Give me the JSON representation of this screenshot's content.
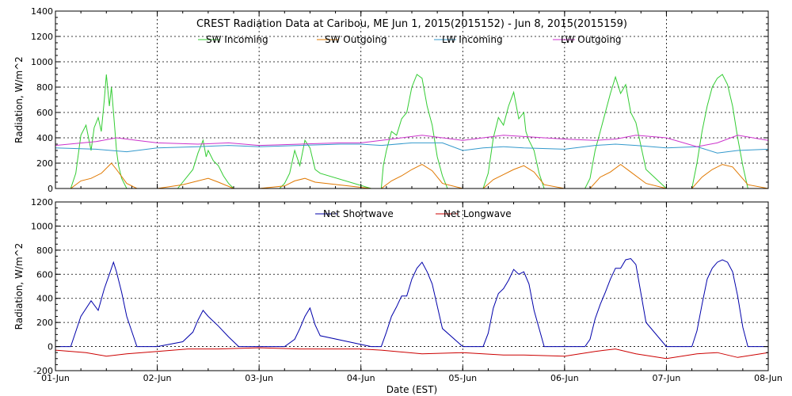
{
  "chart_data": [
    {
      "type": "line",
      "title": "CREST Radiation Data at Caribou, ME   Jun  1, 2015(2015152) - Jun  8, 2015(2015159)",
      "ylabel": "Radiation, W/m^2",
      "xlabel": "",
      "ylim": [
        0,
        1400
      ],
      "yticks": [
        0,
        200,
        400,
        600,
        800,
        1000,
        1200,
        1400
      ],
      "xlim": [
        0,
        7
      ],
      "xtick_labels": [
        "01-Jun",
        "02-Jun",
        "03-Jun",
        "04-Jun",
        "05-Jun",
        "06-Jun",
        "07-Jun",
        "08-Jun"
      ],
      "grid": true,
      "legend_position": "top",
      "series": [
        {
          "name": "SW Incoming",
          "color": "#33cc33",
          "x": [
            0.0,
            0.15,
            0.2,
            0.25,
            0.3,
            0.35,
            0.38,
            0.42,
            0.45,
            0.48,
            0.5,
            0.53,
            0.55,
            0.58,
            0.6,
            0.62,
            0.65,
            0.7,
            0.75,
            0.8,
            1.0,
            1.2,
            1.25,
            1.35,
            1.4,
            1.45,
            1.48,
            1.5,
            1.55,
            1.6,
            1.65,
            1.7,
            1.75,
            1.8,
            2.0,
            2.2,
            2.25,
            2.3,
            2.35,
            2.4,
            2.45,
            2.5,
            2.55,
            2.6,
            3.1,
            3.2,
            3.22,
            3.25,
            3.3,
            3.35,
            3.4,
            3.45,
            3.5,
            3.55,
            3.6,
            3.65,
            3.7,
            3.75,
            3.8,
            3.85,
            4.0,
            4.2,
            4.25,
            4.3,
            4.35,
            4.4,
            4.45,
            4.5,
            4.55,
            4.6,
            4.62,
            4.65,
            4.7,
            4.75,
            4.8,
            5.0,
            5.2,
            5.25,
            5.3,
            5.35,
            5.4,
            5.45,
            5.5,
            5.55,
            5.6,
            5.65,
            5.7,
            5.8,
            6.0,
            6.2,
            6.25,
            6.3,
            6.35,
            6.4,
            6.45,
            6.5,
            6.55,
            6.6,
            6.65,
            6.7,
            6.75,
            6.8,
            7.0
          ],
          "y": [
            0,
            0,
            120,
            420,
            500,
            300,
            480,
            560,
            450,
            700,
            900,
            650,
            800,
            500,
            300,
            180,
            80,
            0,
            0,
            0,
            0,
            0,
            50,
            150,
            280,
            380,
            250,
            300,
            220,
            180,
            100,
            40,
            0,
            0,
            0,
            0,
            40,
            120,
            300,
            180,
            380,
            320,
            150,
            120,
            0,
            0,
            180,
            300,
            450,
            420,
            550,
            600,
            800,
            900,
            870,
            650,
            500,
            250,
            100,
            0,
            0,
            0,
            120,
            400,
            560,
            500,
            650,
            760,
            550,
            600,
            450,
            380,
            300,
            120,
            0,
            0,
            0,
            80,
            300,
            450,
            600,
            750,
            880,
            750,
            820,
            600,
            520,
            150,
            0,
            0,
            0,
            200,
            450,
            650,
            800,
            870,
            900,
            820,
            650,
            400,
            180,
            0,
            0
          ]
        },
        {
          "name": "SW Outgoing",
          "color": "#e07800",
          "x": [
            0.0,
            0.15,
            0.25,
            0.35,
            0.45,
            0.55,
            0.6,
            0.7,
            0.8,
            1.0,
            1.25,
            1.4,
            1.5,
            1.6,
            1.75,
            2.0,
            2.25,
            2.35,
            2.45,
            2.55,
            3.1,
            3.2,
            3.3,
            3.4,
            3.5,
            3.6,
            3.7,
            3.8,
            4.0,
            4.2,
            4.3,
            4.4,
            4.5,
            4.6,
            4.7,
            4.8,
            5.0,
            5.25,
            5.35,
            5.45,
            5.55,
            5.65,
            5.8,
            6.0,
            6.25,
            6.35,
            6.45,
            6.55,
            6.65,
            6.8,
            7.0
          ],
          "y": [
            0,
            0,
            60,
            80,
            120,
            200,
            150,
            40,
            0,
            0,
            30,
            60,
            80,
            50,
            0,
            0,
            20,
            60,
            80,
            50,
            0,
            0,
            60,
            100,
            150,
            190,
            140,
            40,
            0,
            0,
            70,
            110,
            150,
            180,
            130,
            30,
            0,
            0,
            90,
            130,
            190,
            130,
            40,
            0,
            0,
            90,
            150,
            190,
            170,
            30,
            0
          ]
        },
        {
          "name": "LW Incoming",
          "color": "#3399cc",
          "x": [
            0.0,
            0.4,
            0.7,
            1.0,
            1.4,
            1.7,
            2.0,
            2.4,
            2.8,
            3.0,
            3.2,
            3.5,
            3.8,
            4.0,
            4.2,
            4.4,
            4.6,
            5.0,
            5.3,
            5.5,
            5.7,
            6.0,
            6.3,
            6.5,
            6.7,
            7.0
          ],
          "y": [
            320,
            310,
            290,
            320,
            330,
            340,
            330,
            340,
            350,
            350,
            340,
            360,
            360,
            300,
            320,
            330,
            320,
            310,
            340,
            350,
            340,
            320,
            330,
            280,
            300,
            310
          ]
        },
        {
          "name": "LW Outgoing",
          "color": "#cc33cc",
          "x": [
            0.0,
            0.4,
            0.6,
            0.8,
            1.0,
            1.4,
            1.7,
            2.0,
            2.4,
            2.8,
            3.0,
            3.2,
            3.4,
            3.6,
            3.8,
            4.0,
            4.2,
            4.4,
            4.6,
            5.0,
            5.3,
            5.5,
            5.7,
            6.0,
            6.3,
            6.5,
            6.7,
            7.0
          ],
          "y": [
            340,
            370,
            400,
            380,
            360,
            350,
            360,
            340,
            350,
            360,
            360,
            380,
            400,
            420,
            400,
            380,
            400,
            420,
            410,
            390,
            380,
            390,
            420,
            400,
            330,
            360,
            420,
            380
          ]
        }
      ]
    },
    {
      "type": "line",
      "title": "",
      "ylabel": "Radiation, W/m^2",
      "xlabel": "Date (EST)",
      "ylim": [
        -200,
        1200
      ],
      "yticks": [
        -200,
        0,
        200,
        400,
        600,
        800,
        1000,
        1200
      ],
      "xlim": [
        0,
        7
      ],
      "xtick_labels": [
        "01-Jun",
        "02-Jun",
        "03-Jun",
        "04-Jun",
        "05-Jun",
        "06-Jun",
        "07-Jun",
        "08-Jun"
      ],
      "grid": true,
      "legend_position": "top",
      "series": [
        {
          "name": "Net Shortwave",
          "color": "#0000aa",
          "x": [
            0.0,
            0.15,
            0.25,
            0.35,
            0.42,
            0.48,
            0.53,
            0.57,
            0.6,
            0.65,
            0.7,
            0.8,
            1.0,
            1.25,
            1.35,
            1.4,
            1.45,
            1.5,
            1.6,
            1.7,
            1.8,
            2.0,
            2.25,
            2.35,
            2.4,
            2.45,
            2.5,
            2.55,
            2.6,
            3.1,
            3.2,
            3.25,
            3.3,
            3.35,
            3.4,
            3.45,
            3.5,
            3.55,
            3.6,
            3.65,
            3.7,
            3.8,
            4.0,
            4.2,
            4.25,
            4.3,
            4.35,
            4.4,
            4.45,
            4.5,
            4.55,
            4.6,
            4.65,
            4.7,
            4.8,
            5.0,
            5.2,
            5.25,
            5.3,
            5.35,
            5.4,
            5.45,
            5.5,
            5.55,
            5.6,
            5.65,
            5.7,
            5.8,
            6.0,
            6.2,
            6.25,
            6.3,
            6.35,
            6.4,
            6.45,
            6.5,
            6.55,
            6.6,
            6.65,
            6.7,
            6.75,
            6.8,
            7.0
          ],
          "y": [
            0,
            0,
            250,
            380,
            300,
            480,
            600,
            700,
            620,
            450,
            250,
            0,
            0,
            40,
            120,
            220,
            300,
            250,
            170,
            80,
            0,
            0,
            0,
            60,
            150,
            250,
            320,
            180,
            90,
            0,
            0,
            120,
            250,
            330,
            420,
            420,
            560,
            650,
            700,
            620,
            520,
            150,
            0,
            0,
            110,
            320,
            440,
            480,
            550,
            640,
            600,
            620,
            520,
            300,
            0,
            0,
            0,
            60,
            230,
            350,
            450,
            560,
            650,
            650,
            720,
            730,
            680,
            200,
            0,
            0,
            0,
            130,
            350,
            560,
            650,
            700,
            720,
            700,
            620,
            420,
            160,
            0,
            0
          ]
        },
        {
          "name": "Net Longwave",
          "color": "#cc0000",
          "x": [
            0.0,
            0.3,
            0.5,
            0.7,
            1.0,
            1.3,
            1.6,
            2.0,
            2.4,
            2.8,
            3.0,
            3.2,
            3.6,
            4.0,
            4.2,
            4.4,
            4.6,
            5.0,
            5.3,
            5.5,
            5.7,
            6.0,
            6.3,
            6.5,
            6.7,
            7.0
          ],
          "y": [
            -30,
            -50,
            -80,
            -60,
            -40,
            -20,
            -20,
            -10,
            -20,
            -20,
            -20,
            -30,
            -60,
            -50,
            -60,
            -70,
            -70,
            -80,
            -40,
            -20,
            -60,
            -100,
            -60,
            -50,
            -90,
            -50
          ]
        }
      ]
    }
  ]
}
